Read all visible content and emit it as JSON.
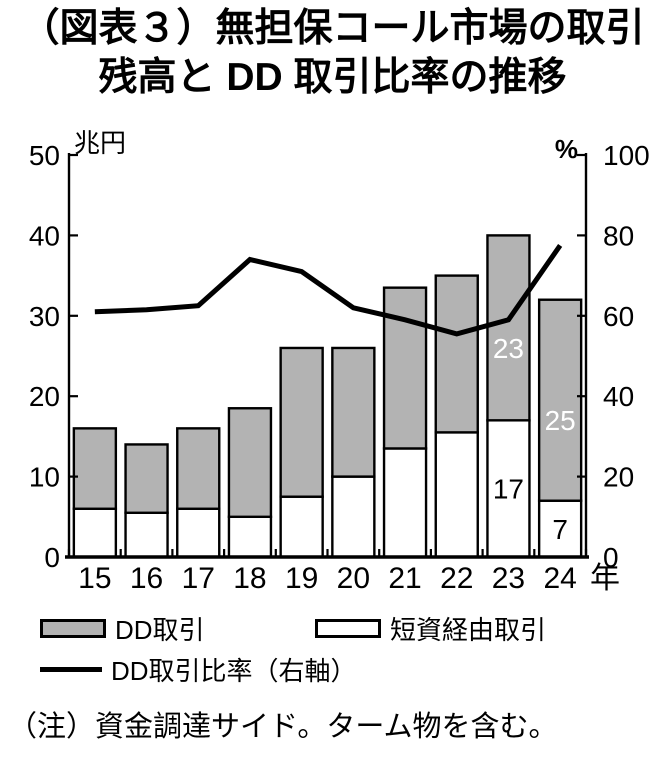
{
  "title": {
    "line1": "（図表３）無担保コール市場の取引",
    "line2": "残高と DD 取引比率の推移"
  },
  "chart_data": {
    "type": "bar",
    "subtype": "stacked-bars-with-line",
    "categories": [
      "15",
      "16",
      "17",
      "18",
      "19",
      "20",
      "21",
      "22",
      "23",
      "24"
    ],
    "x_unit": "年",
    "left_axis": {
      "unit": "兆円",
      "min": 0,
      "max": 50,
      "ticks": [
        0,
        10,
        20,
        30,
        40,
        50
      ]
    },
    "right_axis": {
      "unit": "%",
      "min": 0,
      "max": 100,
      "ticks": [
        0,
        20,
        40,
        60,
        80,
        100
      ]
    },
    "series": [
      {
        "name": "短資経由取引",
        "type": "bar",
        "axis": "left",
        "color": "#ffffff",
        "values": [
          6,
          5.5,
          6,
          5,
          7.5,
          10,
          13.5,
          15.5,
          17,
          7
        ]
      },
      {
        "name": "DD取引",
        "type": "bar",
        "axis": "left",
        "color": "#b3b3b3",
        "values": [
          10,
          8.5,
          10,
          13.5,
          18.5,
          16,
          20,
          19.5,
          23,
          25
        ]
      },
      {
        "name": "DD取引比率（右軸）",
        "type": "line",
        "axis": "right",
        "color": "#000000",
        "values": [
          61,
          61.5,
          62.5,
          74,
          71,
          62,
          59,
          55.5,
          59,
          77.5
        ]
      }
    ],
    "bar_labels": [
      {
        "year": "23",
        "series": "DD取引",
        "text": "23",
        "color": "#ffffff"
      },
      {
        "year": "23",
        "series": "短資経由取引",
        "text": "17",
        "color": "#000000"
      },
      {
        "year": "24",
        "series": "DD取引",
        "text": "25",
        "color": "#ffffff"
      },
      {
        "year": "24",
        "series": "短資経由取引",
        "text": "7",
        "color": "#000000"
      }
    ],
    "grid": false,
    "legend_position": "bottom"
  },
  "legend": {
    "dd": {
      "label": "DD取引",
      "swatch_color": "#b3b3b3"
    },
    "tanshi": {
      "label": "短資経由取引",
      "swatch_color": "#ffffff"
    },
    "ratio": {
      "label": "DD取引比率（右軸）"
    }
  },
  "note": "（注）資金調達サイド。ターム物を含む。"
}
